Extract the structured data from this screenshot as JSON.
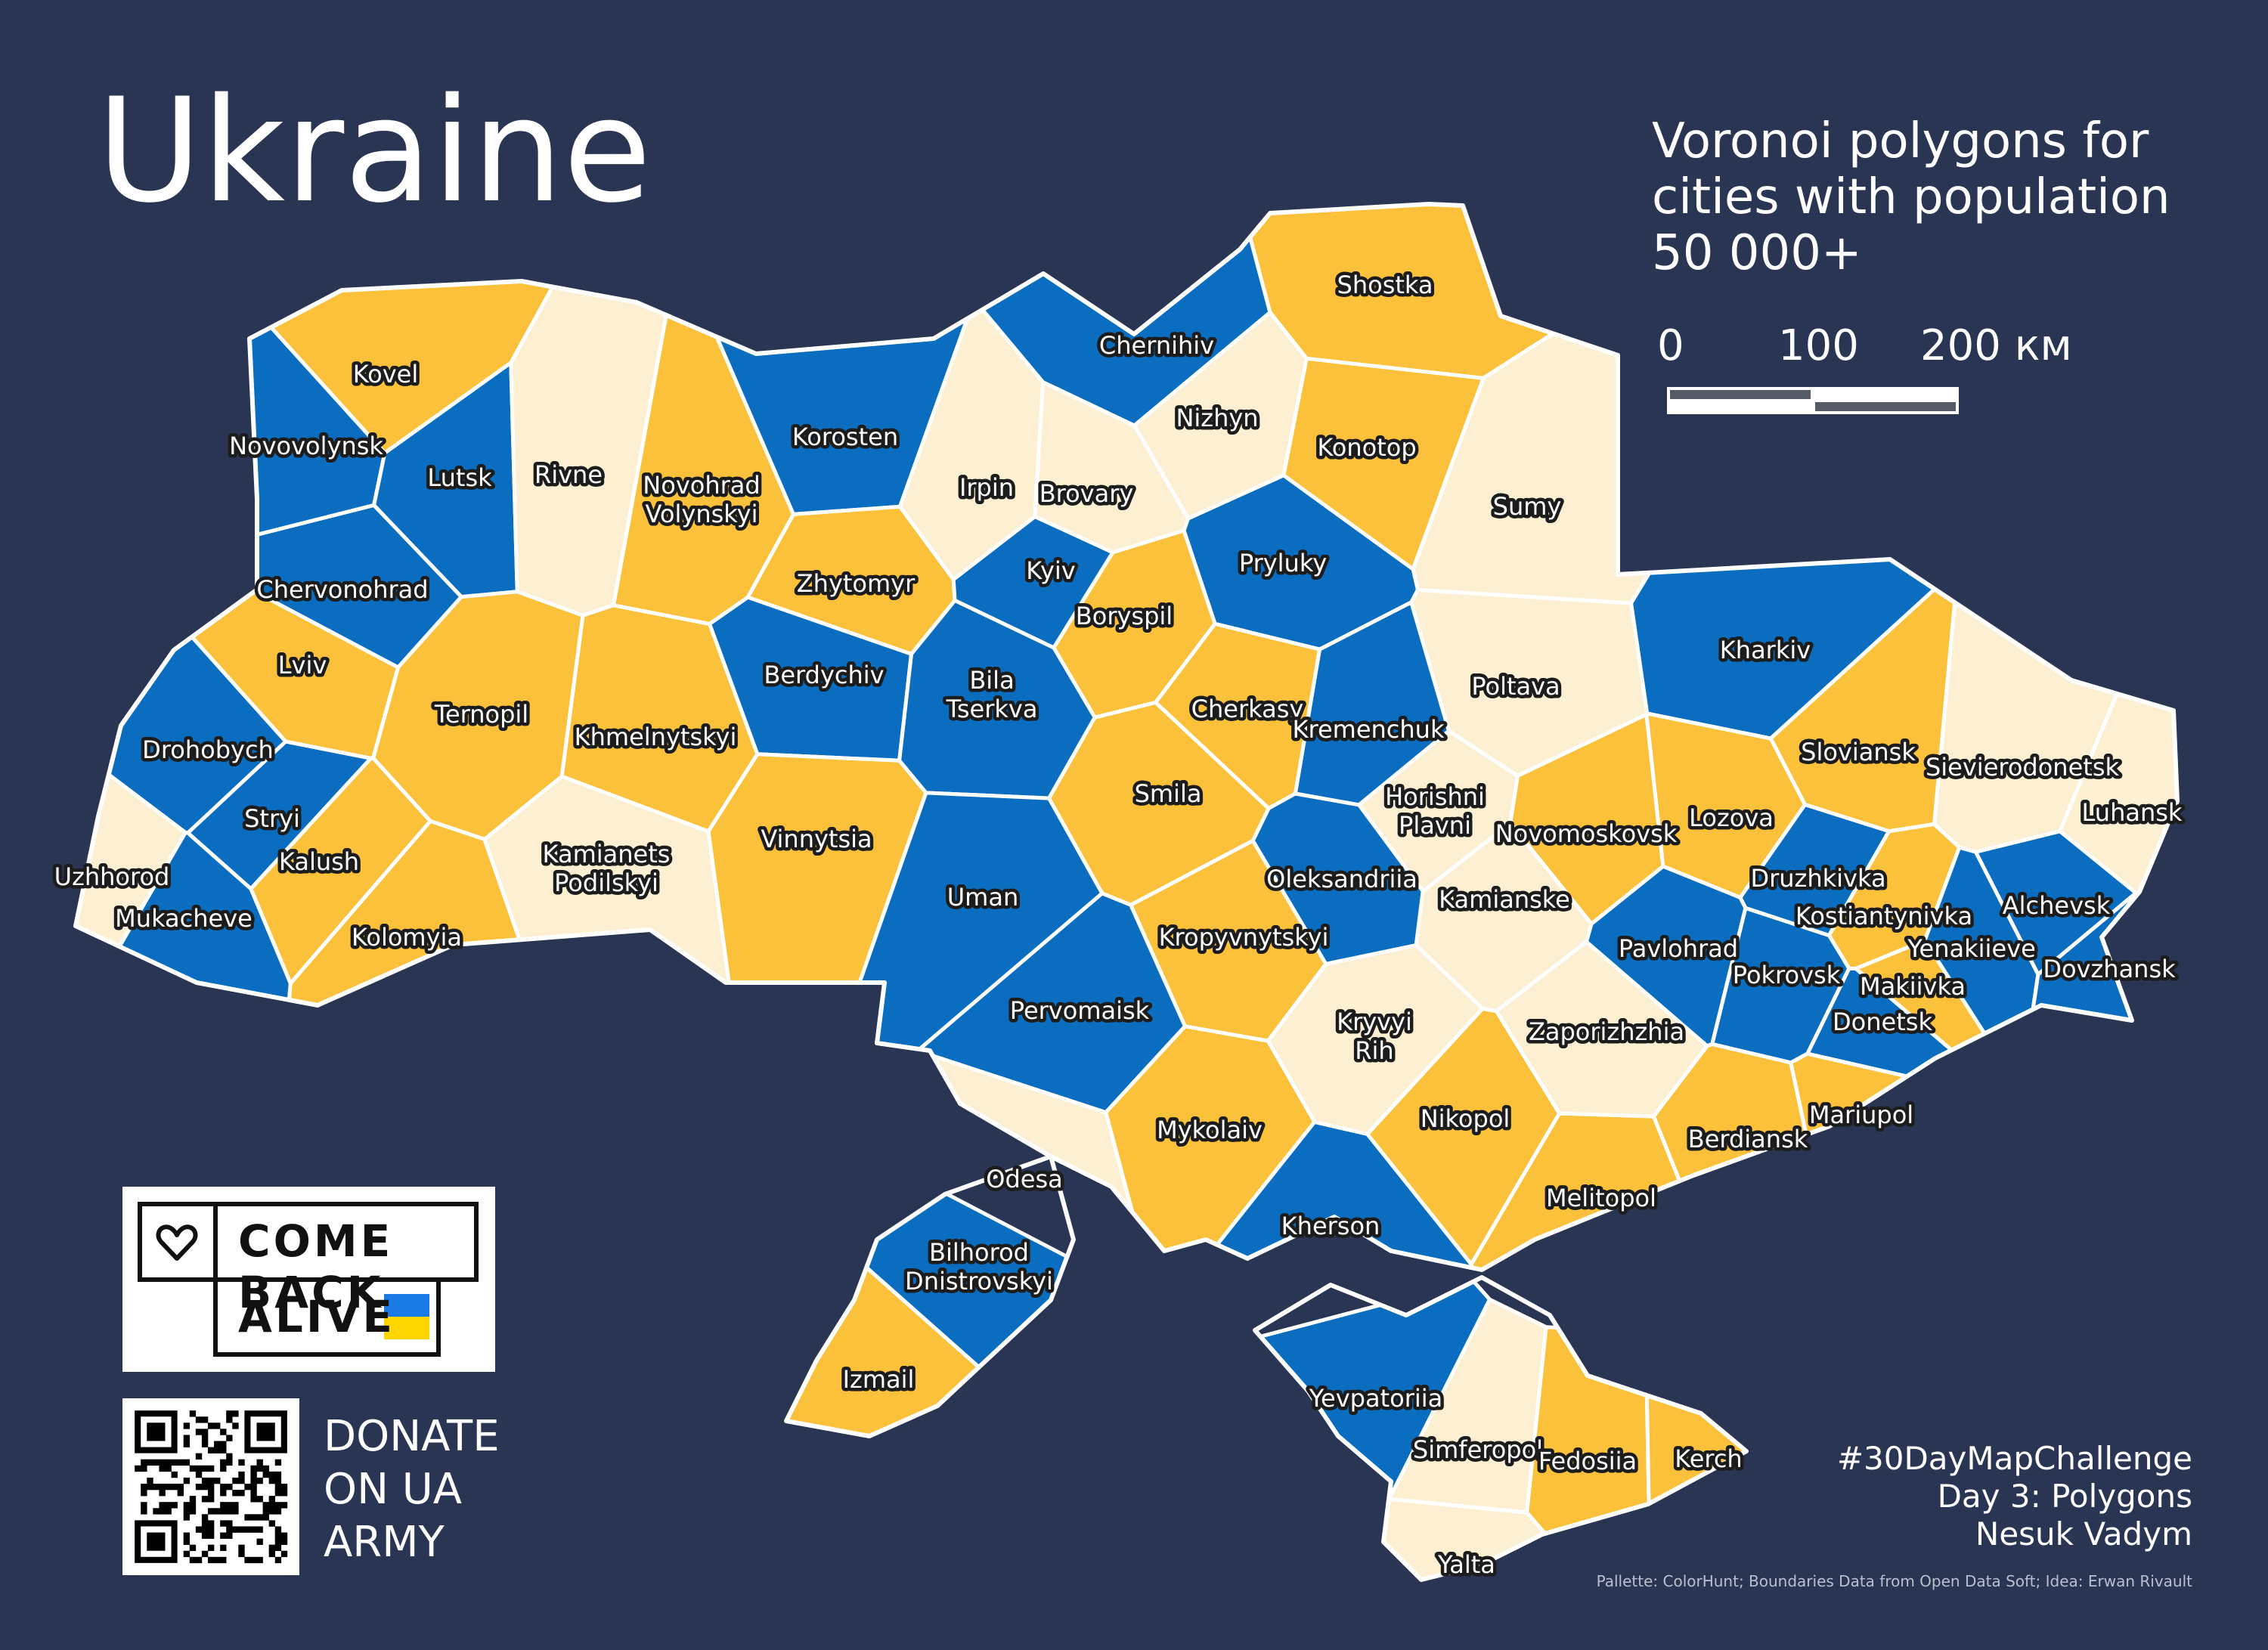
{
  "title": "Ukraine",
  "subtitle": [
    "Voronoi polygons for",
    "cities with population",
    "50 000+"
  ],
  "scale": {
    "labels": [
      "0",
      "100",
      "200 км"
    ]
  },
  "colors": {
    "background": "#2a3553",
    "blue": "#0a6dbf",
    "yellow": "#fbc13b",
    "cream": "#fdf0d2",
    "border": "#ffffff"
  },
  "cities": [
    {
      "name": "Kovel",
      "color": "yellow"
    },
    {
      "name": "Novovolynsk",
      "color": "blue"
    },
    {
      "name": "Lutsk",
      "color": "blue"
    },
    {
      "name": "Rivne",
      "color": "cream"
    },
    {
      "name": "Novohrad Volynskyi",
      "color": "yellow"
    },
    {
      "name": "Korosten",
      "color": "blue"
    },
    {
      "name": "Chernihiv",
      "color": "blue"
    },
    {
      "name": "Shostka",
      "color": "yellow"
    },
    {
      "name": "Nizhyn",
      "color": "cream"
    },
    {
      "name": "Konotop",
      "color": "yellow"
    },
    {
      "name": "Irpin",
      "color": "cream"
    },
    {
      "name": "Brovary",
      "color": "cream"
    },
    {
      "name": "Sumy",
      "color": "cream"
    },
    {
      "name": "Chervonohrad",
      "color": "blue"
    },
    {
      "name": "Zhytomyr",
      "color": "yellow"
    },
    {
      "name": "Kyiv",
      "color": "blue"
    },
    {
      "name": "Pryluky",
      "color": "blue"
    },
    {
      "name": "Boryspil",
      "color": "yellow"
    },
    {
      "name": "Lviv",
      "color": "yellow"
    },
    {
      "name": "Ternopil",
      "color": "yellow"
    },
    {
      "name": "Khmelnytskyi",
      "color": "yellow"
    },
    {
      "name": "Berdychiv",
      "color": "blue"
    },
    {
      "name": "Bila Tserkva",
      "color": "blue"
    },
    {
      "name": "Kharkiv",
      "color": "blue"
    },
    {
      "name": "Poltava",
      "color": "cream"
    },
    {
      "name": "Cherkasy",
      "color": "yellow"
    },
    {
      "name": "Kremenchuk",
      "color": "blue"
    },
    {
      "name": "Drohobych",
      "color": "blue"
    },
    {
      "name": "Stryi",
      "color": "blue"
    },
    {
      "name": "Kalush",
      "color": "yellow"
    },
    {
      "name": "Uzhhorod",
      "color": "cream"
    },
    {
      "name": "Mukacheve",
      "color": "blue"
    },
    {
      "name": "Kolomyia",
      "color": "yellow"
    },
    {
      "name": "Kamianets Podilskyi",
      "color": "cream"
    },
    {
      "name": "Vinnytsia",
      "color": "yellow"
    },
    {
      "name": "Uman",
      "color": "blue"
    },
    {
      "name": "Smila",
      "color": "yellow"
    },
    {
      "name": "Horishni Plavni",
      "color": "cream"
    },
    {
      "name": "Sloviansk",
      "color": "yellow"
    },
    {
      "name": "Sievierodonetsk",
      "color": "cream"
    },
    {
      "name": "Novomoskovsk",
      "color": "yellow"
    },
    {
      "name": "Lozova",
      "color": "yellow"
    },
    {
      "name": "Luhansk",
      "color": "cream"
    },
    {
      "name": "Oleksandriia",
      "color": "blue"
    },
    {
      "name": "Kamianske",
      "color": "cream"
    },
    {
      "name": "Druzhkivka",
      "color": "blue"
    },
    {
      "name": "Kostiantynivka",
      "color": "yellow"
    },
    {
      "name": "Alchevsk",
      "color": "blue"
    },
    {
      "name": "Kropyvnytskyi",
      "color": "yellow"
    },
    {
      "name": "Pavlohrad",
      "color": "blue"
    },
    {
      "name": "Yenakiieve",
      "color": "blue"
    },
    {
      "name": "Pokrovsk",
      "color": "blue"
    },
    {
      "name": "Makiivka",
      "color": "yellow"
    },
    {
      "name": "Dovzhansk",
      "color": "blue"
    },
    {
      "name": "Pervomaisk",
      "color": "blue"
    },
    {
      "name": "Kryvyi Rih",
      "color": "cream"
    },
    {
      "name": "Zaporizhzhia",
      "color": "cream"
    },
    {
      "name": "Donetsk",
      "color": "blue"
    },
    {
      "name": "Nikopol",
      "color": "yellow"
    },
    {
      "name": "Mykolaiv",
      "color": "yellow"
    },
    {
      "name": "Berdiansk",
      "color": "yellow"
    },
    {
      "name": "Mariupol",
      "color": "yellow"
    },
    {
      "name": "Odesa",
      "color": "cream"
    },
    {
      "name": "Melitopol",
      "color": "yellow"
    },
    {
      "name": "Kherson",
      "color": "blue"
    },
    {
      "name": "Bilhorod Dnistrovskyi",
      "color": "blue"
    },
    {
      "name": "Izmail",
      "color": "yellow"
    },
    {
      "name": "Yevpatoriia",
      "color": "blue"
    },
    {
      "name": "Simferopol",
      "color": "cream"
    },
    {
      "name": "Fedosiia",
      "color": "yellow"
    },
    {
      "name": "Kerch",
      "color": "yellow"
    },
    {
      "name": "Yalta",
      "color": "cream"
    }
  ],
  "logo": {
    "line1": "COME BACK",
    "line2": "ALIVE",
    "icon": "heart-icon",
    "flag_colors": [
      "#1a7be6",
      "#ffd500"
    ]
  },
  "donate": [
    "DONATE",
    "ON UA",
    "ARMY"
  ],
  "credits": [
    "#30DayMapChallenge",
    "Day 3: Polygons",
    "Nesuk Vadym"
  ],
  "footnote": "Pallette: ColorHunt; Boundaries Data from Open Data Soft; Idea: Erwan Rivault"
}
